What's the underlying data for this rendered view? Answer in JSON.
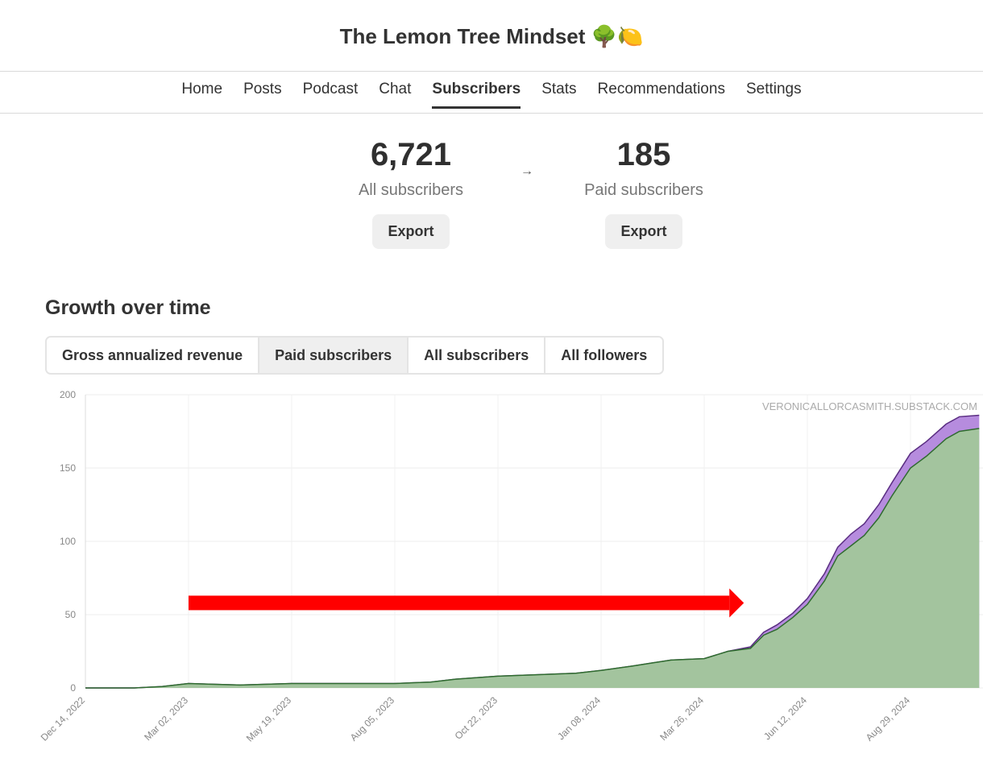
{
  "header": {
    "title": "The Lemon Tree Mindset 🌳🍋"
  },
  "nav": {
    "items": [
      {
        "label": "Home"
      },
      {
        "label": "Posts"
      },
      {
        "label": "Podcast"
      },
      {
        "label": "Chat"
      },
      {
        "label": "Subscribers"
      },
      {
        "label": "Stats"
      },
      {
        "label": "Recommendations"
      },
      {
        "label": "Settings"
      }
    ],
    "active": "Subscribers"
  },
  "stats": {
    "all": {
      "value": "6,721",
      "label": "All subscribers",
      "export_label": "Export"
    },
    "paid": {
      "value": "185",
      "label": "Paid subscribers",
      "export_label": "Export"
    },
    "arrow": "→"
  },
  "growth": {
    "title": "Growth over time",
    "tabs": [
      {
        "label": "Gross annualized revenue"
      },
      {
        "label": "Paid subscribers"
      },
      {
        "label": "All subscribers"
      },
      {
        "label": "All followers"
      }
    ],
    "active_tab": "Paid subscribers"
  },
  "chart_data": {
    "type": "area",
    "watermark": "VERONICALLORCASMITH.SUBSTACK.COM",
    "ylim": [
      0,
      200
    ],
    "yticks": [
      0,
      50,
      100,
      150,
      200
    ],
    "xticks": [
      "Dec 14, 2022",
      "Mar 02, 2023",
      "May 19, 2023",
      "Aug 05, 2023",
      "Oct 22, 2023",
      "Jan 08, 2024",
      "Mar 26, 2024",
      "Jun 12, 2024",
      "Aug 29, 2024"
    ],
    "grid": true,
    "colors": {
      "total": "#a978d8",
      "paid": "#a3c49e",
      "paid_line": "#2f6b2f",
      "total_line": "#5a2d82",
      "annotation_arrow": "#ff0000"
    },
    "x": [
      "2022-12-14",
      "2023-01-20",
      "2023-02-10",
      "2023-03-02",
      "2023-04-10",
      "2023-05-19",
      "2023-06-20",
      "2023-08-05",
      "2023-09-01",
      "2023-09-20",
      "2023-10-22",
      "2023-11-20",
      "2023-12-20",
      "2024-01-08",
      "2024-02-01",
      "2024-02-15",
      "2024-03-01",
      "2024-03-26",
      "2024-04-13",
      "2024-04-30",
      "2024-05-10",
      "2024-05-20",
      "2024-06-01",
      "2024-06-12",
      "2024-06-25",
      "2024-07-05",
      "2024-07-15",
      "2024-07-25",
      "2024-08-05",
      "2024-08-15",
      "2024-08-29",
      "2024-09-10",
      "2024-09-25",
      "2024-10-05",
      "2024-10-20"
    ],
    "series": [
      {
        "values": [
          0,
          0,
          1,
          3,
          2,
          3,
          3,
          3,
          4,
          6,
          8,
          9,
          10,
          12,
          15,
          17,
          19,
          20,
          25,
          27,
          36,
          40,
          48,
          57,
          73,
          90,
          97,
          104,
          116,
          131,
          150,
          158,
          170,
          175,
          177
        ]
      },
      {
        "values": [
          0,
          0,
          1,
          3,
          2,
          3,
          3,
          3,
          4,
          6,
          8,
          9,
          10,
          12,
          15,
          17,
          19,
          20,
          25,
          28,
          38,
          43,
          51,
          61,
          78,
          96,
          105,
          112,
          125,
          140,
          160,
          168,
          180,
          185,
          186
        ]
      }
    ],
    "annotation": {
      "type": "arrow",
      "from": [
        "2023-03-02",
        58
      ],
      "to": [
        "2024-04-25",
        58
      ]
    }
  }
}
